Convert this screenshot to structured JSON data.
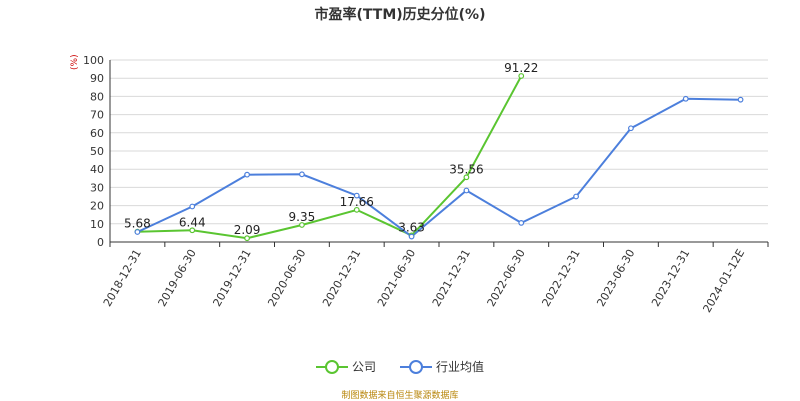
{
  "chart_data": {
    "type": "line",
    "title": "市盈率(TTM)历史分位(%)",
    "unit_label": "(%)",
    "ylim": [
      0,
      100
    ],
    "yticks": [
      0,
      10,
      20,
      30,
      40,
      50,
      60,
      70,
      80,
      90,
      100
    ],
    "grid": true,
    "legend_position": "bottom",
    "x_labels": [
      "2018-12-31",
      "2019-06-30",
      "2019-12-31",
      "2020-06-30",
      "2020-12-31",
      "2021-06-30",
      "2021-12-31",
      "2022-06-30",
      "2022-12-31",
      "2023-06-30",
      "2023-12-31",
      "2024-01-12E"
    ],
    "series": [
      {
        "name": "公司",
        "color": "#5ac531",
        "values": [
          5.68,
          6.44,
          2.09,
          9.35,
          17.66,
          3.63,
          35.56,
          91.22,
          null,
          null,
          null,
          null
        ],
        "data_labels": [
          "5.68",
          "6.44",
          "2.09",
          "9.35",
          "17.66",
          "3.63",
          "35.56",
          "91.22",
          null,
          null,
          null,
          null
        ]
      },
      {
        "name": "行业均值",
        "color": "#4c7fdc",
        "values": [
          5.5,
          19.5,
          37.0,
          37.2,
          25.5,
          3.0,
          28.3,
          10.5,
          25.0,
          62.5,
          78.7,
          78.2
        ]
      }
    ]
  },
  "source_note": "制图数据来自恒生聚源数据库"
}
